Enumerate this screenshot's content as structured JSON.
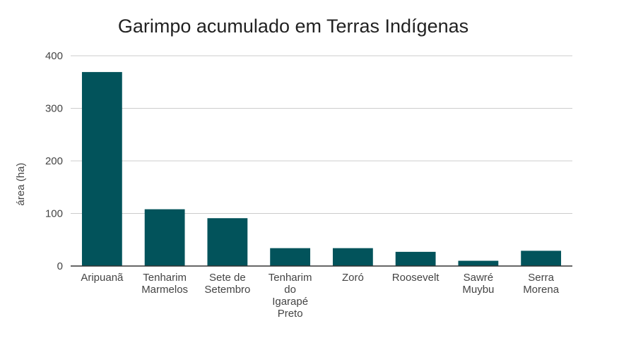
{
  "chart_data": {
    "type": "bar",
    "title": "Garimpo acumulado em Terras Indígenas",
    "xlabel": "",
    "ylabel": "área (ha)",
    "ylim": [
      0,
      400
    ],
    "yticks": [
      "0",
      "100",
      "200",
      "300",
      "400"
    ],
    "grid": true,
    "legend": "none",
    "bar_color": "#02535B",
    "categories": [
      [
        "Aripuanã"
      ],
      [
        "Tenharim",
        "Marmelos"
      ],
      [
        "Sete de",
        "Setembro"
      ],
      [
        "Tenharim",
        "do",
        "Igarapé",
        "Preto"
      ],
      [
        "Zoró"
      ],
      [
        "Roosevelt"
      ],
      [
        "Sawré",
        "Muybu"
      ],
      [
        "Serra",
        "Morena"
      ]
    ],
    "values": [
      369,
      108,
      91,
      34,
      34,
      27,
      10,
      29
    ]
  }
}
